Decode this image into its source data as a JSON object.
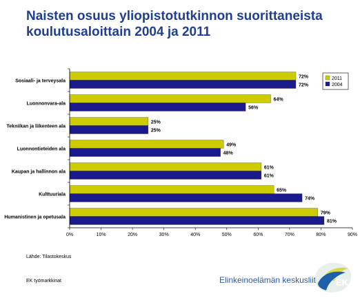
{
  "title_line1": "Naisten osuus yliopistotutkinnon  suorittaneista",
  "title_line2": "koulutusaloittain 2004 ja 2011",
  "source": "Lähde: Tilastokeskus",
  "footer_left": "EK työmarkkinat",
  "brand": "Elinkeinoelämän keskusliitto",
  "logo_text": "EK",
  "colors": {
    "s2011": "#cccc00",
    "s2004": "#1a1a8c",
    "title": "#1f3f95",
    "brand": "#2a5ba8"
  },
  "chart_data": {
    "type": "bar",
    "orientation": "horizontal",
    "categories": [
      "Sosiaali- ja terveysala",
      "Luonnonvara-ala",
      "Tekniikan ja liikenteen ala",
      "Luonnontieteiden ala",
      "Kaupan ja hallinnon ala",
      "Kulttuuriala",
      "Humanistinen ja opetusala"
    ],
    "series": [
      {
        "name": "2011",
        "values": [
          72,
          64,
          25,
          49,
          61,
          65,
          79
        ],
        "color": "#cccc00"
      },
      {
        "name": "2004",
        "values": [
          72,
          56,
          25,
          48,
          61,
          74,
          81
        ],
        "color": "#1a1a8c"
      }
    ],
    "value_labels": [
      [
        "72%",
        "64%",
        "25%",
        "49%",
        "61%",
        "65%",
        "79%"
      ],
      [
        "72%",
        "56%",
        "25%",
        "48%",
        "61%",
        "74%",
        "81%"
      ]
    ],
    "xlim": [
      0,
      90
    ],
    "xticks": [
      "0%",
      "10%",
      "20%",
      "30%",
      "40%",
      "50%",
      "60%",
      "70%",
      "80%",
      "90%"
    ],
    "legend": "top-right",
    "grid": false
  }
}
